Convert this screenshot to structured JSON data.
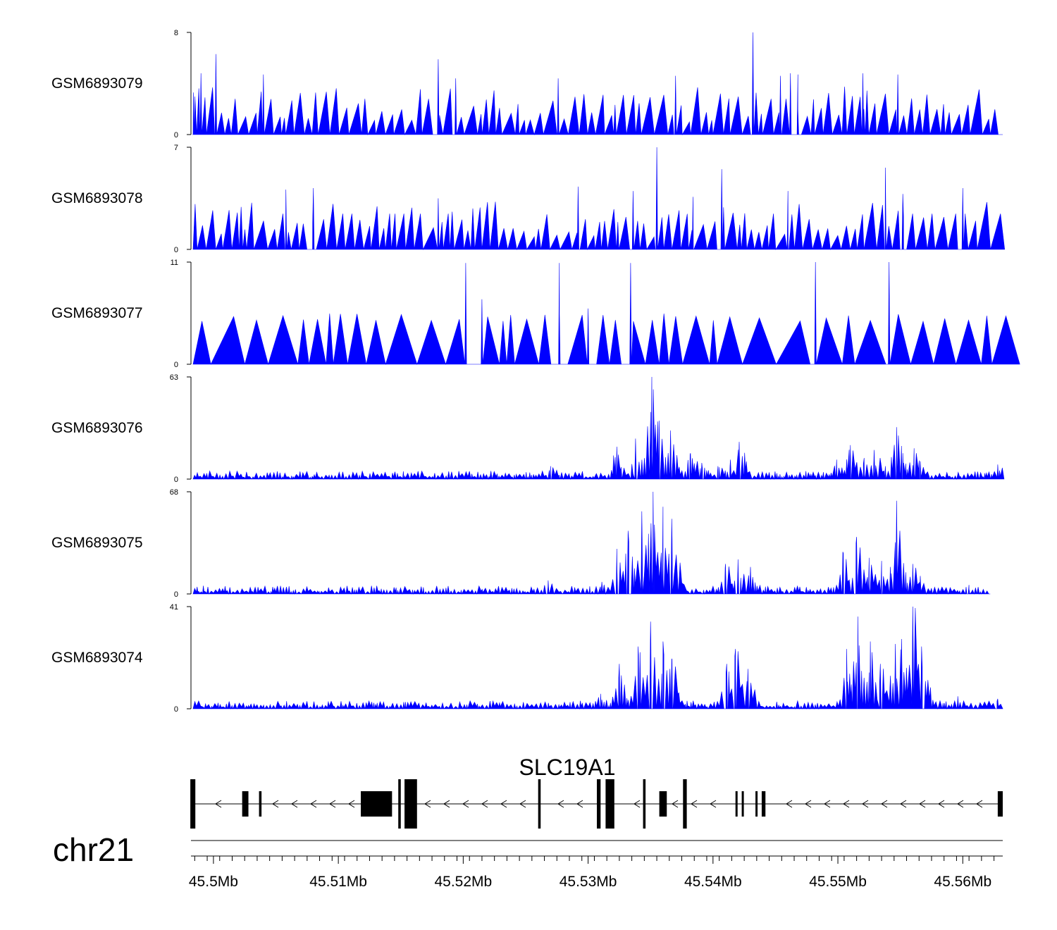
{
  "colors": {
    "signal": "#0000ff",
    "axis": "#000000",
    "gene": "#000000"
  },
  "chart_data": {
    "type": "area",
    "title": "",
    "chromosome": "chr21",
    "xrange_mb": [
      45.4982,
      45.5632
    ],
    "xticks": [
      {
        "value": 45.5,
        "label": "45.5Mb"
      },
      {
        "value": 45.51,
        "label": "45.51Mb"
      },
      {
        "value": 45.52,
        "label": "45.52Mb"
      },
      {
        "value": 45.53,
        "label": "45.53Mb"
      },
      {
        "value": 45.54,
        "label": "45.54Mb"
      },
      {
        "value": 45.55,
        "label": "45.55Mb"
      },
      {
        "value": 45.56,
        "label": "45.56Mb"
      }
    ],
    "tracks": [
      {
        "name": "GSM6893079",
        "ymin": "0",
        "ymax": "8",
        "yrange": [
          0,
          8
        ],
        "pattern": "sparse",
        "end": 45.5632,
        "peaks": [
          [
            45.5432,
            8
          ],
          [
            45.5002,
            6.3
          ],
          [
            45.4984,
            3.3
          ],
          [
            45.499,
            4.8
          ],
          [
            45.504,
            4.7
          ],
          [
            45.518,
            5.9
          ],
          [
            45.5194,
            4.4
          ],
          [
            45.552,
            4.8
          ],
          [
            45.5548,
            4.7
          ],
          [
            45.537,
            4.6
          ],
          [
            45.5276,
            4.4
          ],
          [
            45.5454,
            4.6
          ],
          [
            45.5462,
            4.8
          ],
          [
            45.5468,
            4.7
          ]
        ]
      },
      {
        "name": "GSM6893078",
        "ymin": "0",
        "ymax": "7",
        "yrange": [
          0,
          7
        ],
        "pattern": "sparse",
        "end": 45.5632,
        "peaks": [
          [
            45.5355,
            7
          ],
          [
            45.5407,
            5.5
          ],
          [
            45.5538,
            5.6
          ],
          [
            45.56,
            4.2
          ],
          [
            45.5292,
            4.3
          ],
          [
            45.5058,
            4.1
          ],
          [
            45.508,
            4.2
          ],
          [
            45.518,
            3.5
          ],
          [
            45.546,
            4.0
          ],
          [
            45.5552,
            3.8
          ],
          [
            45.5336,
            4.0
          ],
          [
            45.5384,
            3.6
          ]
        ]
      },
      {
        "name": "GSM6893077",
        "ymin": "0",
        "ymax": "11",
        "yrange": [
          0,
          11
        ],
        "pattern": "triangles",
        "end": 45.5627,
        "peaks": [
          [
            45.5482,
            11
          ],
          [
            45.5202,
            10.9
          ],
          [
            45.5277,
            10.9
          ],
          [
            45.5334,
            10.9
          ],
          [
            45.5215,
            7.0
          ],
          [
            45.53,
            6.0
          ],
          [
            45.5541,
            11
          ]
        ]
      },
      {
        "name": "GSM6893076",
        "ymin": "0",
        "ymax": "63",
        "yrange": [
          0,
          63
        ],
        "pattern": "broad",
        "end": 45.5632,
        "peaks": [
          [
            45.5351,
            63
          ],
          [
            45.5338,
            25
          ],
          [
            45.5357,
            36
          ],
          [
            45.5366,
            30
          ],
          [
            45.5323,
            20
          ],
          [
            45.5382,
            16
          ],
          [
            45.5421,
            23
          ],
          [
            45.5414,
            12
          ],
          [
            45.5404,
            8
          ],
          [
            45.5391,
            10
          ],
          [
            45.551,
            21
          ],
          [
            45.5529,
            18
          ],
          [
            45.5521,
            13
          ],
          [
            45.5547,
            32
          ],
          [
            45.5552,
            16
          ],
          [
            45.5561,
            19
          ],
          [
            45.5566,
            11
          ],
          [
            45.5499,
            12
          ],
          [
            45.5538,
            8
          ],
          [
            45.5628,
            9
          ],
          [
            45.527,
            8
          ]
        ]
      },
      {
        "name": "GSM6893075",
        "ymin": "0",
        "ymax": "68",
        "yrange": [
          0,
          68
        ],
        "pattern": "broad",
        "end": 45.5622,
        "peaks": [
          [
            45.5352,
            68
          ],
          [
            45.5343,
            55
          ],
          [
            45.536,
            58
          ],
          [
            45.5367,
            50
          ],
          [
            45.5332,
            42
          ],
          [
            45.5323,
            30
          ],
          [
            45.5311,
            8
          ],
          [
            45.542,
            23
          ],
          [
            45.541,
            20
          ],
          [
            45.543,
            18
          ],
          [
            45.5515,
            38
          ],
          [
            45.5504,
            28
          ],
          [
            45.5525,
            24
          ],
          [
            45.5535,
            22
          ],
          [
            45.5547,
            62
          ],
          [
            45.5542,
            18
          ],
          [
            45.556,
            20
          ],
          [
            45.5566,
            12
          ],
          [
            45.5605,
            6
          ],
          [
            45.5268,
            9
          ]
        ]
      },
      {
        "name": "GSM6893074",
        "ymin": "0",
        "ymax": "41",
        "yrange": [
          0,
          41
        ],
        "pattern": "broad",
        "end": 45.5632,
        "peaks": [
          [
            45.535,
            35
          ],
          [
            45.534,
            25
          ],
          [
            45.536,
            27
          ],
          [
            45.5325,
            18
          ],
          [
            45.5367,
            20
          ],
          [
            45.531,
            6
          ],
          [
            45.5418,
            24
          ],
          [
            45.5411,
            18
          ],
          [
            45.5428,
            16
          ],
          [
            45.5516,
            37
          ],
          [
            45.5507,
            24
          ],
          [
            45.5526,
            27
          ],
          [
            45.5534,
            18
          ],
          [
            45.5551,
            28
          ],
          [
            45.5546,
            26
          ],
          [
            45.556,
            41
          ],
          [
            45.5567,
            25
          ],
          [
            45.5596,
            5
          ],
          [
            45.5628,
            4
          ]
        ]
      }
    ],
    "gene": {
      "name": "SLC19A1",
      "strand": "-",
      "start": 45.4982,
      "end": 45.5632,
      "exons": [
        [
          45.49815,
          45.49855,
          "tall"
        ],
        [
          45.5023,
          45.5028,
          "mid"
        ],
        [
          45.50365,
          45.50385,
          "mid"
        ],
        [
          45.5118,
          45.5143,
          "mid"
        ],
        [
          45.5148,
          45.515,
          "tall"
        ],
        [
          45.5153,
          45.5163,
          "tall"
        ],
        [
          45.526,
          45.5262,
          "tall"
        ],
        [
          45.5307,
          45.531,
          "tall"
        ],
        [
          45.5314,
          45.5321,
          "tall"
        ],
        [
          45.5344,
          45.5346,
          "tall"
        ],
        [
          45.5357,
          45.5363,
          "mid"
        ],
        [
          45.5376,
          45.5379,
          "tall"
        ],
        [
          45.5418,
          45.5419,
          "mid"
        ],
        [
          45.5423,
          45.5424,
          "mid"
        ],
        [
          45.5434,
          45.5435,
          "mid"
        ],
        [
          45.5439,
          45.5442,
          "mid"
        ],
        [
          45.5628,
          45.5632,
          "mid"
        ]
      ]
    }
  }
}
